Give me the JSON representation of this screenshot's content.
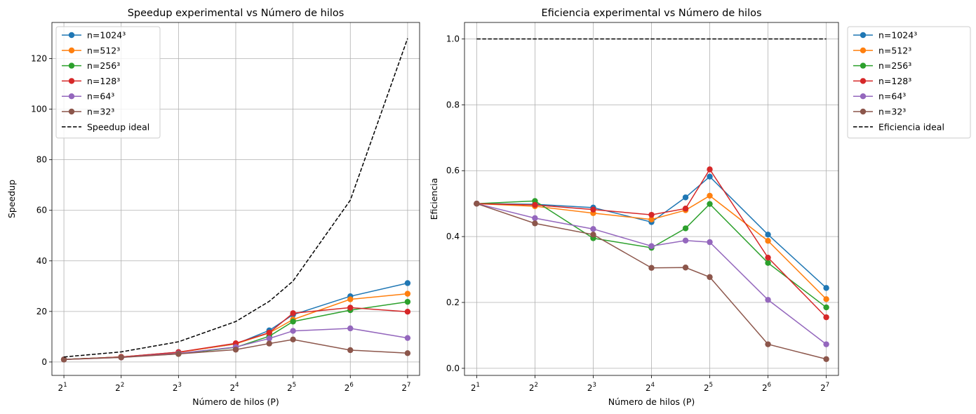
{
  "chart_data": [
    {
      "type": "line",
      "title": "Speedup experimental vs Número de hilos",
      "xlabel": "Número de hilos (P)",
      "ylabel": "Speedup",
      "x_scale": "log2",
      "x": [
        2,
        4,
        8,
        16,
        24,
        32,
        64,
        128
      ],
      "xlim": [
        1.73,
        148
      ],
      "ylim": [
        -5.3,
        134.3
      ],
      "xticks": [
        2,
        4,
        8,
        16,
        32,
        64,
        128
      ],
      "xtick_labels": [
        {
          "base": "2",
          "exp": "1"
        },
        {
          "base": "2",
          "exp": "2"
        },
        {
          "base": "2",
          "exp": "3"
        },
        {
          "base": "2",
          "exp": "4"
        },
        {
          "base": "2",
          "exp": "5"
        },
        {
          "base": "2",
          "exp": "6"
        },
        {
          "base": "2",
          "exp": "7"
        }
      ],
      "yticks": [
        0,
        20,
        40,
        60,
        80,
        100,
        120
      ],
      "ytick_labels": [
        "0",
        "20",
        "40",
        "60",
        "80",
        "100",
        "120"
      ],
      "grid": true,
      "legend_position": "upper-left",
      "series": [
        {
          "name": "n=1024³",
          "color": "#1f77b4",
          "values": [
            1.0,
            2.0,
            3.9,
            7.1,
            12.5,
            18.7,
            26.0,
            31.2
          ]
        },
        {
          "name": "n=512³",
          "color": "#ff7f0e",
          "values": [
            1.0,
            2.0,
            3.8,
            7.2,
            11.5,
            16.8,
            24.8,
            27.0
          ]
        },
        {
          "name": "n=256³",
          "color": "#2ca02c",
          "values": [
            1.0,
            2.0,
            3.2,
            5.8,
            10.2,
            16.0,
            20.5,
            23.8
          ]
        },
        {
          "name": "n=128³",
          "color": "#d62728",
          "values": [
            1.0,
            2.0,
            3.9,
            7.4,
            11.6,
            19.3,
            21.5,
            19.9
          ]
        },
        {
          "name": "n=64³",
          "color": "#9467bd",
          "values": [
            1.0,
            1.8,
            3.4,
            5.9,
            9.3,
            12.3,
            13.3,
            9.5
          ]
        },
        {
          "name": "n=32³",
          "color": "#8c564b",
          "values": [
            1.0,
            1.8,
            3.2,
            4.9,
            7.3,
            8.9,
            4.7,
            3.5
          ]
        },
        {
          "name": "Speedup ideal",
          "color": "#000000",
          "dashed": true,
          "markers": false,
          "values": [
            2,
            4,
            8,
            16,
            24,
            32,
            64,
            128
          ]
        }
      ]
    },
    {
      "type": "line",
      "title": "Eficiencia experimental vs Número de hilos",
      "xlabel": "Número de hilos (P)",
      "ylabel": "Eficiencia",
      "x_scale": "log2",
      "x": [
        2,
        4,
        8,
        16,
        24,
        32,
        64,
        128
      ],
      "xlim": [
        1.73,
        148
      ],
      "ylim": [
        -0.0215,
        1.05
      ],
      "xticks": [
        2,
        4,
        8,
        16,
        32,
        64,
        128
      ],
      "xtick_labels": [
        {
          "base": "2",
          "exp": "1"
        },
        {
          "base": "2",
          "exp": "2"
        },
        {
          "base": "2",
          "exp": "3"
        },
        {
          "base": "2",
          "exp": "4"
        },
        {
          "base": "2",
          "exp": "5"
        },
        {
          "base": "2",
          "exp": "6"
        },
        {
          "base": "2",
          "exp": "7"
        }
      ],
      "yticks": [
        0.0,
        0.2,
        0.4,
        0.6,
        0.8,
        1.0
      ],
      "ytick_labels": [
        "0.0",
        "0.2",
        "0.4",
        "0.6",
        "0.8",
        "1.0"
      ],
      "grid": true,
      "legend_position": "outside-upper-right",
      "series": [
        {
          "name": "n=1024³",
          "color": "#1f77b4",
          "values": [
            0.5,
            0.498,
            0.488,
            0.444,
            0.519,
            0.582,
            0.406,
            0.244
          ]
        },
        {
          "name": "n=512³",
          "color": "#ff7f0e",
          "values": [
            0.5,
            0.492,
            0.471,
            0.452,
            0.48,
            0.524,
            0.387,
            0.21
          ]
        },
        {
          "name": "n=256³",
          "color": "#2ca02c",
          "values": [
            0.5,
            0.508,
            0.395,
            0.366,
            0.425,
            0.499,
            0.32,
            0.185
          ]
        },
        {
          "name": "n=128³",
          "color": "#d62728",
          "values": [
            0.5,
            0.496,
            0.482,
            0.466,
            0.485,
            0.604,
            0.336,
            0.155
          ]
        },
        {
          "name": "n=64³",
          "color": "#9467bd",
          "values": [
            0.5,
            0.456,
            0.423,
            0.371,
            0.388,
            0.383,
            0.208,
            0.073
          ]
        },
        {
          "name": "n=32³",
          "color": "#8c564b",
          "values": [
            0.5,
            0.44,
            0.406,
            0.305,
            0.306,
            0.277,
            0.073,
            0.028
          ]
        },
        {
          "name": "Eficiencia ideal",
          "color": "#000000",
          "dashed": true,
          "markers": false,
          "values": [
            1,
            1,
            1,
            1,
            1,
            1,
            1,
            1
          ]
        }
      ]
    }
  ]
}
